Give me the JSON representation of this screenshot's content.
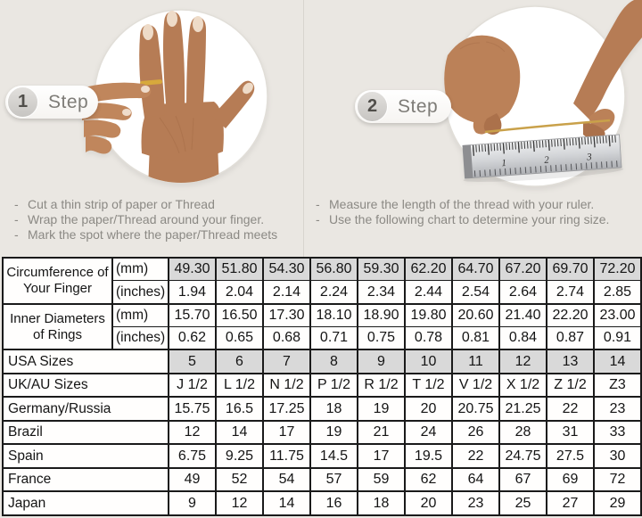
{
  "page": {
    "background_color": "#eae7e2",
    "description_colors": {
      "muted_text": "#8b8984",
      "step_label_text": "#7e7c77",
      "table_border": "#1a1a1a",
      "shaded_cell": "#d9d9d9",
      "skin_tone": "#b67c55",
      "ring_gold": "#d7a93c",
      "thread_gold": "#c9a14a",
      "ruler_silver": "#cfd1d4"
    }
  },
  "steps": [
    {
      "number": "1",
      "label": "Step",
      "icon": "hand-with-ring-photo",
      "bullets": [
        "Cut a thin strip of paper or Thread",
        "Wrap the paper/Thread around your finger.",
        "Mark the spot where the paper/Thread meets"
      ]
    },
    {
      "number": "2",
      "label": "Step",
      "icon": "measuring-thread-with-ruler-photo",
      "bullets": [
        "Measure the length of the thread with your ruler.",
        "Use the following chart to determine your ring size."
      ]
    }
  ],
  "size_chart": {
    "measure_groups": [
      {
        "label": "Circumference of Your Finger",
        "rows": [
          {
            "unit": "(mm)",
            "shaded": true,
            "values": [
              "49.30",
              "51.80",
              "54.30",
              "56.80",
              "59.30",
              "62.20",
              "64.70",
              "67.20",
              "69.70",
              "72.20"
            ]
          },
          {
            "unit": "(inches)",
            "shaded": false,
            "values": [
              "1.94",
              "2.04",
              "2.14",
              "2.24",
              "2.34",
              "2.44",
              "2.54",
              "2.64",
              "2.74",
              "2.85"
            ]
          }
        ]
      },
      {
        "label": "Inner Diameters of Rings",
        "rows": [
          {
            "unit": "(mm)",
            "shaded": false,
            "values": [
              "15.70",
              "16.50",
              "17.30",
              "18.10",
              "18.90",
              "19.80",
              "20.60",
              "21.40",
              "22.20",
              "23.00"
            ]
          },
          {
            "unit": "(inches)",
            "shaded": false,
            "values": [
              "0.62",
              "0.65",
              "0.68",
              "0.71",
              "0.75",
              "0.78",
              "0.81",
              "0.84",
              "0.87",
              "0.91"
            ]
          }
        ]
      }
    ],
    "region_rows": [
      {
        "label": "USA Sizes",
        "shaded": true,
        "values": [
          "5",
          "6",
          "7",
          "8",
          "9",
          "10",
          "11",
          "12",
          "13",
          "14"
        ]
      },
      {
        "label": "UK/AU Sizes",
        "shaded": false,
        "values": [
          "J 1/2",
          "L 1/2",
          "N 1/2",
          "P 1/2",
          "R 1/2",
          "T 1/2",
          "V 1/2",
          "X 1/2",
          "Z 1/2",
          "Z3"
        ]
      },
      {
        "label": "Germany/Russia",
        "shaded": false,
        "values": [
          "15.75",
          "16.5",
          "17.25",
          "18",
          "19",
          "20",
          "20.75",
          "21.25",
          "22",
          "23"
        ]
      },
      {
        "label": "Brazil",
        "shaded": false,
        "values": [
          "12",
          "14",
          "17",
          "19",
          "21",
          "24",
          "26",
          "28",
          "31",
          "33"
        ]
      },
      {
        "label": "Spain",
        "shaded": false,
        "values": [
          "6.75",
          "9.25",
          "11.75",
          "14.5",
          "17",
          "19.5",
          "22",
          "24.75",
          "27.5",
          "30"
        ]
      },
      {
        "label": "France",
        "shaded": false,
        "values": [
          "49",
          "52",
          "54",
          "57",
          "59",
          "62",
          "64",
          "67",
          "69",
          "72"
        ]
      },
      {
        "label": "Japan",
        "shaded": false,
        "values": [
          "9",
          "12",
          "14",
          "16",
          "18",
          "20",
          "23",
          "25",
          "27",
          "29"
        ]
      }
    ]
  }
}
